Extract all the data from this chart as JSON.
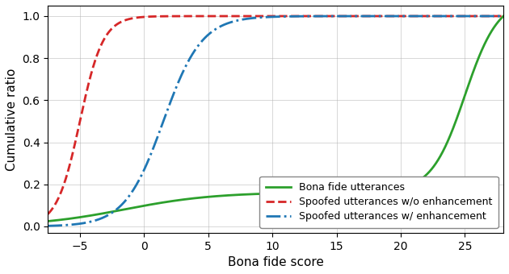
{
  "title": "",
  "xlabel": "Bona fide score",
  "ylabel": "Cumulative ratio",
  "xlim": [
    -7.5,
    28
  ],
  "ylim": [
    -0.03,
    1.05
  ],
  "xticks": [
    -5,
    0,
    5,
    10,
    15,
    20,
    25
  ],
  "yticks": [
    0.0,
    0.2,
    0.4,
    0.6,
    0.8,
    1.0
  ],
  "grid": true,
  "bona_fide_color": "#2ca02c",
  "spoof_no_enh_color": "#d62728",
  "spoof_enh_color": "#1f77b4",
  "legend_labels": [
    "Bona fide utterances",
    "Spoofed utterances w/o enhancement",
    "Spoofed utterances w/ enhancement"
  ],
  "legend_loc": "lower right",
  "linewidth": 2.0,
  "figsize": [
    6.3,
    3.4
  ],
  "dpi": 100,
  "bona_fide_mu": 24.0,
  "bona_fide_sigma": 4.5,
  "spoof_no_enh_mu": -5.0,
  "spoof_no_enh_sigma": 0.9,
  "spoof_enh_mu": 1.5,
  "spoof_enh_sigma": 1.5
}
